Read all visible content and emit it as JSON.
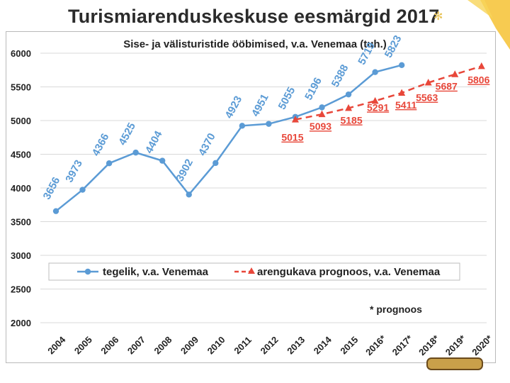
{
  "slide": {
    "title": "Turismiarenduskeskuse eesmärgid 2017"
  },
  "chart_data": {
    "type": "line",
    "title": "Sise- ja välisturistide ööbimised, v.a. Venemaa (tuh.)",
    "ylim": [
      2000,
      6000
    ],
    "yticks": [
      "6000",
      "5500",
      "5000",
      "4500",
      "4000",
      "3500",
      "3000",
      "2500",
      "2000"
    ],
    "categories": [
      "2004",
      "2005",
      "2006",
      "2007",
      "2008",
      "2009",
      "2010",
      "2011",
      "2012",
      "2013",
      "2014",
      "2015",
      "2016*",
      "2017*",
      "2018*",
      "2019*",
      "2020*"
    ],
    "grid": true,
    "legend_position": "lower-middle",
    "footnote": "* prognoos",
    "series": [
      {
        "name": "tegelik, v.a. Venemaa",
        "color": "#5b9bd5",
        "marker": "circle",
        "values": [
          3656,
          3973,
          4366,
          4525,
          4404,
          3902,
          4370,
          4923,
          4951,
          5055,
          5196,
          5388,
          5719,
          5823,
          null,
          null,
          null
        ],
        "labels": [
          "3656",
          "3973",
          "4366",
          "4525",
          "4404",
          "3902",
          "4370",
          "4923",
          "4951",
          "5055",
          "5196",
          "5388",
          "5719",
          "5823",
          "",
          "",
          ""
        ]
      },
      {
        "name": "arengukava prognoos, v.a. Venemaa",
        "color": "#e8473a",
        "marker": "triangle",
        "dashed": true,
        "values": [
          null,
          null,
          null,
          null,
          null,
          null,
          null,
          null,
          null,
          5015,
          5093,
          5185,
          5291,
          5411,
          5563,
          5687,
          5806
        ],
        "labels": [
          "",
          "",
          "",
          "",
          "",
          "",
          "",
          "",
          "",
          "5015",
          "5093",
          "5185",
          "5291",
          "5411",
          "5563",
          "5687",
          "5806"
        ]
      }
    ]
  }
}
